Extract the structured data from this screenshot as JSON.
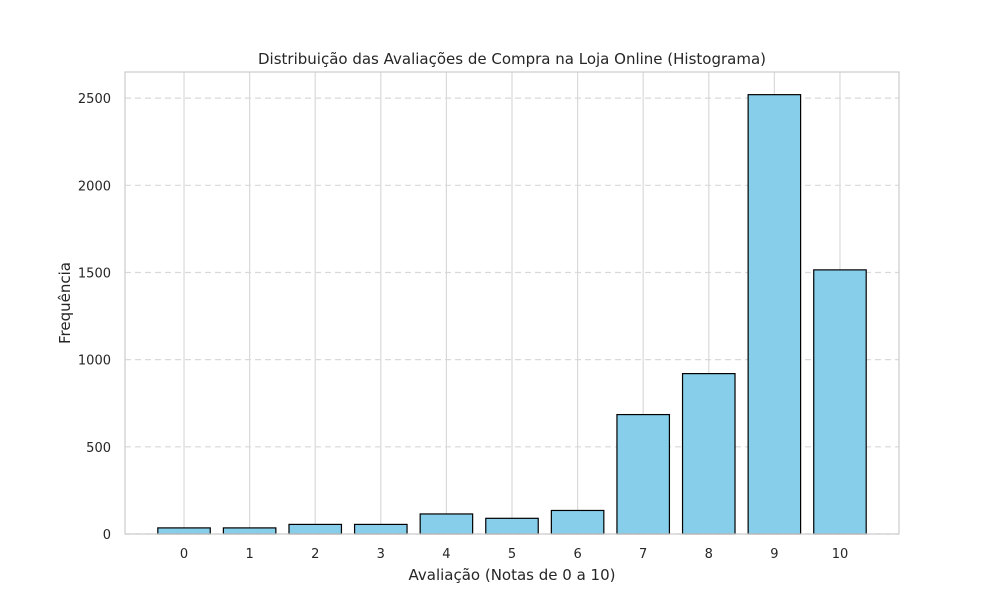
{
  "chart_data": {
    "type": "bar",
    "title": "Distribuição das Avaliações de Compra na Loja Online (Histograma)",
    "xlabel": "Avaliação (Notas de 0 a 10)",
    "ylabel": "Frequência",
    "categories": [
      "0",
      "1",
      "2",
      "3",
      "4",
      "5",
      "6",
      "7",
      "8",
      "9",
      "10"
    ],
    "values": [
      35,
      35,
      55,
      55,
      115,
      90,
      135,
      685,
      920,
      2520,
      1515
    ],
    "ylim": [
      0,
      2650
    ],
    "yticks": [
      0,
      500,
      1000,
      1500,
      2000,
      2500
    ],
    "grid": {
      "x": "solid",
      "y": "dashed"
    },
    "colors": {
      "bar_fill": "#87CEEB",
      "bar_edge": "#000000",
      "grid": "#d9d9d9",
      "frame": "#cccccc"
    }
  }
}
